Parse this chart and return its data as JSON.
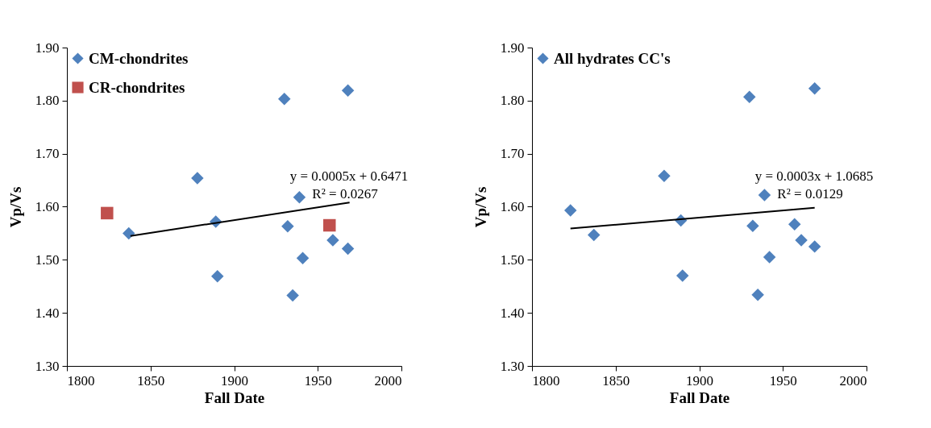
{
  "chart_data": [
    {
      "type": "scatter",
      "xlabel": "Fall Date",
      "ylabel": "Vp/Vs",
      "xlim": [
        1800,
        2000
      ],
      "xticks": [
        1800,
        1850,
        1900,
        1950,
        2000
      ],
      "ylim": [
        1.3,
        1.9
      ],
      "yticks": [
        {
          "value": 1.3,
          "label": "1.30"
        },
        {
          "value": 1.4,
          "label": "1.40"
        },
        {
          "value": 1.5,
          "label": "1.50"
        },
        {
          "value": 1.6,
          "label": "1.60"
        },
        {
          "value": 1.7,
          "label": "1.70"
        },
        {
          "value": 1.8,
          "label": "1.80"
        },
        {
          "value": 1.9,
          "label": "1.90"
        }
      ],
      "grid": false,
      "legend": "top left",
      "series": [
        {
          "name": "CM-chondrites",
          "color": "#4f81bd",
          "marker": "diamond",
          "x": [
            1837,
            1878,
            1889,
            1890,
            1930,
            1932,
            1939,
            1935,
            1941,
            1959,
            1968,
            1968
          ],
          "values": [
            1.55,
            1.654,
            1.572,
            1.469,
            1.803,
            1.563,
            1.618,
            1.433,
            1.503,
            1.537,
            1.819,
            1.521
          ]
        },
        {
          "name": "CR-chondrites",
          "color": "#c0504d",
          "marker": "square",
          "x": [
            1824,
            1957
          ],
          "values": [
            1.588,
            1.565
          ]
        },
        {
          "type": "line",
          "color": "#000000",
          "x": [
            1838,
            1969
          ],
          "values": [
            1.545,
            1.608
          ]
        }
      ],
      "annotations": [
        "y = 0.0005x + 0.6471",
        "R² = 0.0267"
      ]
    },
    {
      "type": "scatter",
      "xlabel": "Fall Date",
      "ylabel": "Vp/Vs",
      "xlim": [
        1800,
        2000
      ],
      "xticks": [
        1800,
        1850,
        1900,
        1950,
        2000
      ],
      "ylim": [
        1.3,
        1.9
      ],
      "yticks": [
        {
          "value": 1.3,
          "label": "1.30"
        },
        {
          "value": 1.4,
          "label": "1.40"
        },
        {
          "value": 1.5,
          "label": "1.50"
        },
        {
          "value": 1.6,
          "label": "1.60"
        },
        {
          "value": 1.7,
          "label": "1.70"
        },
        {
          "value": 1.8,
          "label": "1.80"
        },
        {
          "value": 1.9,
          "label": "1.90"
        }
      ],
      "grid": false,
      "legend": "top left",
      "series": [
        {
          "name": "All hydrates CC's",
          "color": "#4f81bd",
          "marker": "diamond",
          "x": [
            1823,
            1837,
            1879,
            1889,
            1890,
            1930,
            1932,
            1939,
            1935,
            1942,
            1957,
            1961,
            1969,
            1969
          ],
          "values": [
            1.593,
            1.547,
            1.658,
            1.574,
            1.47,
            1.807,
            1.564,
            1.622,
            1.434,
            1.505,
            1.567,
            1.537,
            1.525,
            1.823
          ]
        },
        {
          "type": "line",
          "color": "#000000",
          "x": [
            1823,
            1969
          ],
          "values": [
            1.559,
            1.598
          ]
        }
      ],
      "annotations": [
        "y = 0.0003x + 1.0685",
        "R² = 0.0129"
      ]
    }
  ]
}
